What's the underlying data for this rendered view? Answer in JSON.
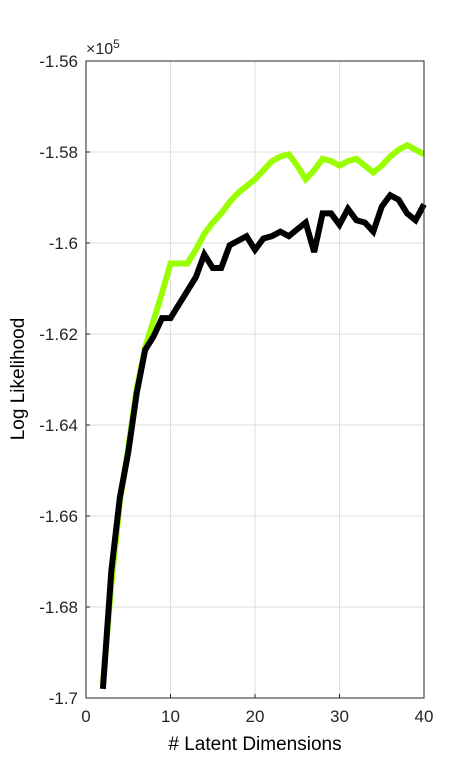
{
  "chart_data": {
    "type": "line",
    "xlabel": "# Latent Dimensions",
    "ylabel": "Log Likelihood",
    "exponent_label": "×10",
    "exponent_power": "5",
    "xlim": [
      0,
      40
    ],
    "ylim": [
      -1.7,
      -1.56
    ],
    "xticks": [
      0,
      10,
      20,
      30,
      40
    ],
    "xtick_labels": [
      "0",
      "10",
      "20",
      "30",
      "40"
    ],
    "yticks": [
      -1.7,
      -1.68,
      -1.66,
      -1.64,
      -1.62,
      -1.6,
      -1.58,
      -1.56
    ],
    "ytick_labels": [
      "-1.7",
      "-1.68",
      "-1.66",
      "-1.64",
      "-1.62",
      "-1.6",
      "-1.58",
      "-1.56"
    ],
    "grid": true,
    "x": [
      2,
      3,
      4,
      5,
      6,
      7,
      8,
      9,
      10,
      11,
      12,
      13,
      14,
      15,
      16,
      17,
      18,
      19,
      20,
      21,
      22,
      23,
      24,
      25,
      26,
      27,
      28,
      29,
      30,
      31,
      32,
      33,
      34,
      35,
      36,
      37,
      38,
      39,
      40
    ],
    "series": [
      {
        "color": "#99ff00",
        "values": [
          -1.697,
          -1.675,
          -1.657,
          -1.645,
          -1.632,
          -1.623,
          -1.617,
          -1.611,
          -1.6045,
          -1.6045,
          -1.6045,
          -1.6015,
          -1.598,
          -1.5955,
          -1.5935,
          -1.591,
          -1.589,
          -1.5875,
          -1.586,
          -1.584,
          -1.582,
          -1.581,
          -1.5805,
          -1.583,
          -1.586,
          -1.584,
          -1.5815,
          -1.582,
          -1.583,
          -1.582,
          -1.5815,
          -1.583,
          -1.5845,
          -1.583,
          -1.581,
          -1.5795,
          -1.5785,
          -1.5795,
          -1.5805
        ]
      },
      {
        "color": "#000000",
        "values": [
          -1.698,
          -1.672,
          -1.656,
          -1.646,
          -1.633,
          -1.6235,
          -1.6205,
          -1.6165,
          -1.6165,
          -1.6135,
          -1.6105,
          -1.6075,
          -1.6025,
          -1.6055,
          -1.6055,
          -1.6005,
          -1.5995,
          -1.5985,
          -1.6015,
          -1.599,
          -1.5985,
          -1.5975,
          -1.5985,
          -1.597,
          -1.5955,
          -1.602,
          -1.5935,
          -1.5935,
          -1.596,
          -1.5925,
          -1.595,
          -1.5955,
          -1.5975,
          -1.592,
          -1.5895,
          -1.5905,
          -1.5935,
          -1.595,
          -1.5915
        ]
      }
    ]
  }
}
